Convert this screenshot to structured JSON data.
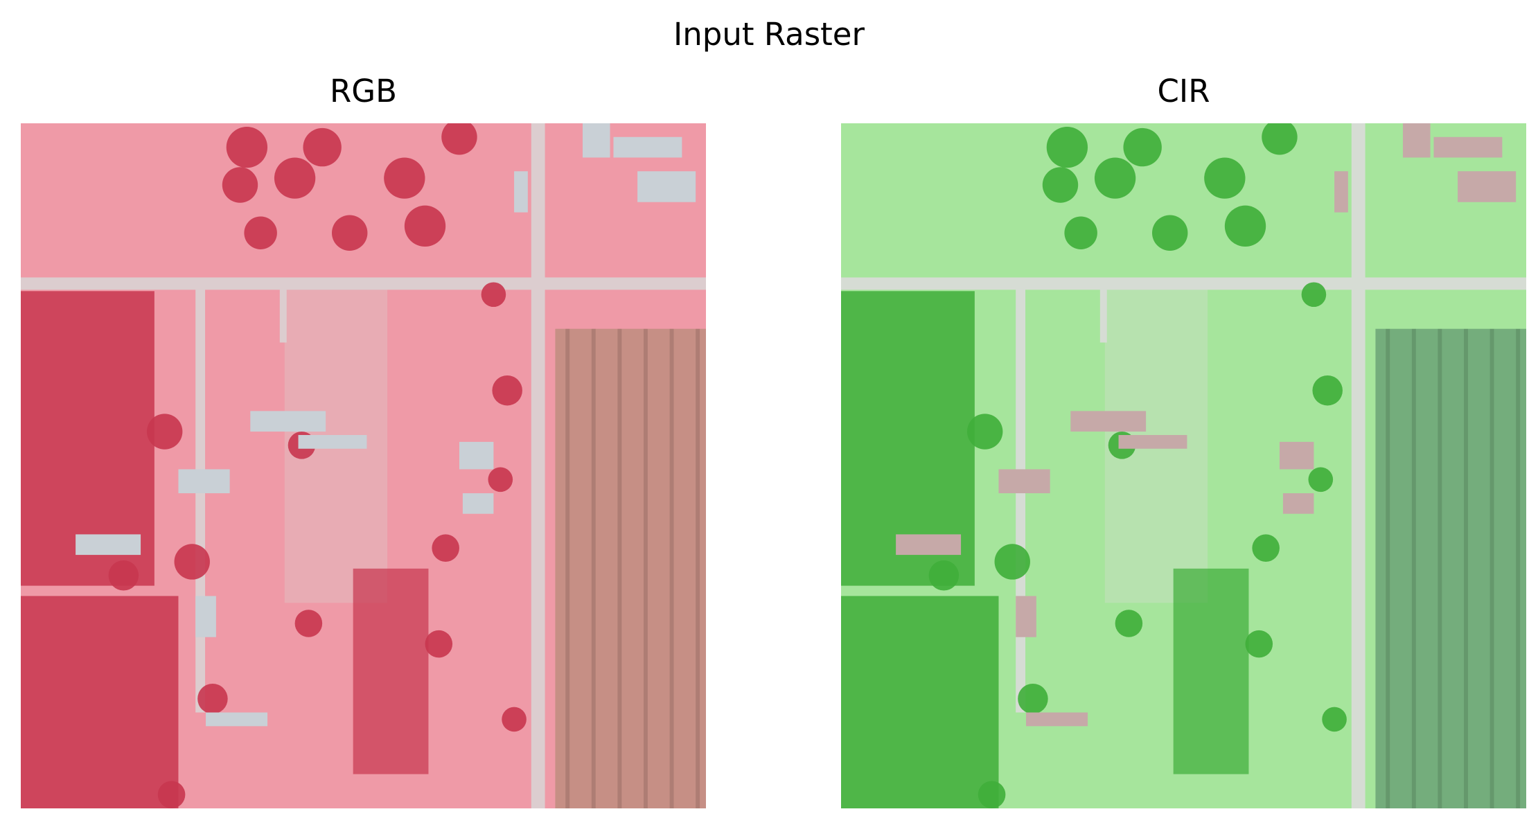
{
  "figure": {
    "title": "Input Raster",
    "panels": [
      {
        "title": "RGB",
        "palette": {
          "field": "#ef9aa7",
          "trees": "#c8364f",
          "road": "#dccdcf",
          "plowed": "#c68f85",
          "building": "#c9d0d6"
        }
      },
      {
        "title": "CIR",
        "palette": {
          "field": "#a6e59c",
          "trees": "#3fae3a",
          "road": "#d6dcd4",
          "plowed": "#74ad7c",
          "building": "#c6a9a8"
        }
      }
    ]
  }
}
